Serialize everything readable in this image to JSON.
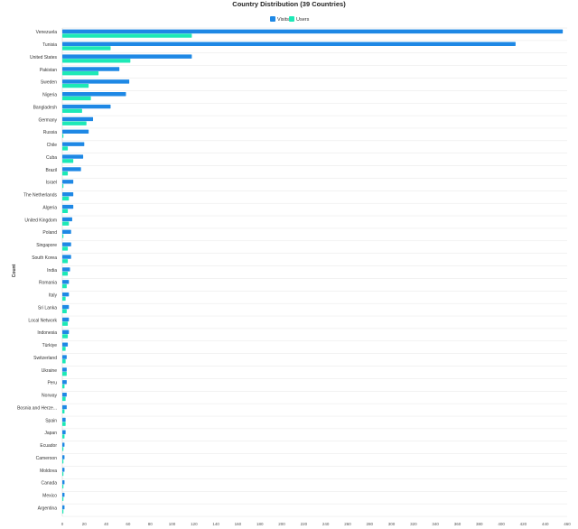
{
  "chart_data": {
    "type": "bar",
    "orientation": "horizontal",
    "title": "Country Distribution (39 Countries)",
    "ylabel": "Count",
    "xlabel": "",
    "xlim": [
      0,
      460
    ],
    "xticks": [
      0,
      20,
      40,
      60,
      80,
      100,
      120,
      140,
      160,
      180,
      200,
      220,
      240,
      260,
      280,
      300,
      320,
      340,
      360,
      380,
      400,
      420,
      440,
      460
    ],
    "legend_position": "top-center",
    "grid": "horizontal row separators",
    "categories": [
      "Venezuela",
      "Tunisia",
      "United States",
      "Pakistan",
      "Sweden",
      "Nigeria",
      "Bangladesh",
      "Germany",
      "Russia",
      "Chile",
      "Cuba",
      "Brazil",
      "Israel",
      "The Netherlands",
      "Algeria",
      "United Kingdom",
      "Poland",
      "Singapore",
      "South Korea",
      "India",
      "Romania",
      "Italy",
      "Sri Lanka",
      "Local Network",
      "Indonesia",
      "Türkiye",
      "Switzerland",
      "Ukraine",
      "Peru",
      "Norway",
      "Bosnia and Herze...",
      "Spain",
      "Japan",
      "Ecuador",
      "Cameroon",
      "Moldova",
      "Canada",
      "Mexico",
      "Argentina"
    ],
    "series": [
      {
        "name": "Visits",
        "color": "#1e88e5",
        "values": [
          456,
          413,
          118,
          52,
          61,
          58,
          44,
          28,
          24,
          20,
          19,
          17,
          10,
          10,
          10,
          9,
          8,
          8,
          8,
          7,
          6,
          6,
          6,
          6,
          6,
          5,
          4,
          4,
          4,
          4,
          4,
          3,
          3,
          2,
          2,
          2,
          2,
          2,
          2
        ]
      },
      {
        "name": "Users",
        "color": "#1de9b6",
        "values": [
          118,
          44,
          62,
          33,
          24,
          26,
          18,
          22,
          1,
          5,
          10,
          5,
          1,
          6,
          5,
          6,
          1,
          5,
          5,
          5,
          4,
          3,
          4,
          5,
          5,
          3,
          3,
          4,
          2,
          3,
          2,
          3,
          2,
          1,
          1,
          1,
          1,
          1,
          1
        ]
      }
    ]
  }
}
